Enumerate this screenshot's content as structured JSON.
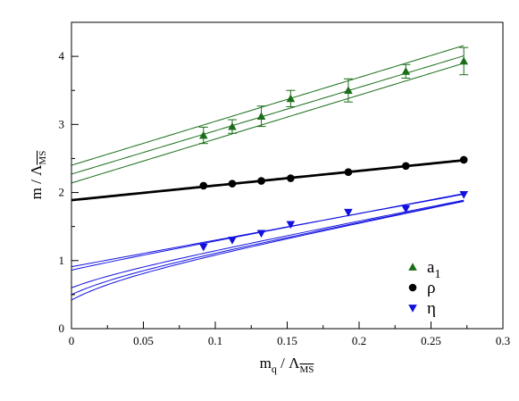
{
  "chart_data": {
    "type": "scatter",
    "title": "",
    "xlabel": {
      "main": "m",
      "sub": "q",
      "sep": " / Λ",
      "over": "MS"
    },
    "ylabel": {
      "main": "m / Λ",
      "over": "MS"
    },
    "xlim": [
      0,
      0.3
    ],
    "ylim": [
      0,
      4.5
    ],
    "x_ticks": [
      0,
      0.05,
      0.1,
      0.15,
      0.2,
      0.25,
      0.3
    ],
    "x_tick_labels": [
      "0",
      "0.05",
      "0.1",
      "0.15",
      "0.2",
      "0.25",
      "0.3"
    ],
    "y_ticks": [
      0,
      1,
      2,
      3,
      4
    ],
    "y_tick_labels": [
      "0",
      "1",
      "2",
      "3",
      "4"
    ],
    "grid": false,
    "legend_position": "lower-right",
    "series": [
      {
        "name": "a",
        "name_sub": "1",
        "marker": "triangle-up",
        "color": "#1a6e1a",
        "x": [
          0.0918,
          0.1118,
          0.132,
          0.1524,
          0.1925,
          0.2325,
          0.2728
        ],
        "y": [
          2.84,
          2.97,
          3.12,
          3.38,
          3.5,
          3.78,
          3.93
        ],
        "yerr": [
          0.12,
          0.1,
          0.15,
          0.12,
          0.17,
          0.1,
          0.2
        ],
        "fits": [
          {
            "type": "linear",
            "y0": 2.4,
            "slope": 6.45
          },
          {
            "type": "linear",
            "y0": 2.27,
            "slope": 6.37
          },
          {
            "type": "linear",
            "y0": 2.14,
            "slope": 6.45
          }
        ]
      },
      {
        "name": "ρ",
        "name_sub": "",
        "marker": "circle",
        "color": "#000000",
        "x": [
          0.0918,
          0.1118,
          0.132,
          0.1524,
          0.1925,
          0.2325,
          0.2728
        ],
        "y": [
          2.1,
          2.13,
          2.17,
          2.21,
          2.3,
          2.39,
          2.48
        ],
        "yerr": [],
        "fits": [
          {
            "type": "linear",
            "y0": 1.88,
            "slope": 2.15
          },
          {
            "type": "linear",
            "y0": 1.895,
            "slope": 2.15
          }
        ]
      },
      {
        "name": "η",
        "name_sub": "",
        "marker": "triangle-down",
        "color": "#1010e0",
        "x": [
          0.0918,
          0.1118,
          0.132,
          0.1524,
          0.1925,
          0.2325,
          0.2728
        ],
        "y": [
          1.2,
          1.3,
          1.4,
          1.53,
          1.71,
          1.76,
          1.97
        ],
        "yerr": [],
        "fits": [
          {
            "type": "curve",
            "y0": 0.91,
            "a": 3.9,
            "b": 0.0
          },
          {
            "type": "curve",
            "y0": 0.86,
            "a": 4.0,
            "b": 0.8
          },
          {
            "type": "curve",
            "y0": 0.6,
            "a": 4.1,
            "b": 4.0
          },
          {
            "type": "curve",
            "y0": 0.5,
            "a": 4.16,
            "b": 5.7
          },
          {
            "type": "curve",
            "y0": 0.42,
            "a": 4.2,
            "b": 7.2
          }
        ]
      }
    ]
  }
}
